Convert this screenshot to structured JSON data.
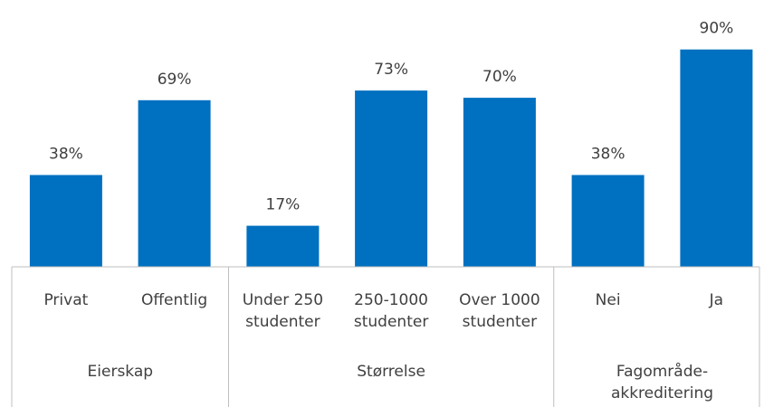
{
  "chart_data": {
    "type": "bar",
    "bar_color": "#0070C0",
    "ylim": [
      0,
      100
    ],
    "grid": false,
    "legend": "none",
    "groups": [
      {
        "name": "Eierskap",
        "categories": [
          {
            "label": [
              "Privat"
            ],
            "value": 38,
            "value_label": "38%"
          },
          {
            "label": [
              "Offentlig"
            ],
            "value": 69,
            "value_label": "69%"
          }
        ]
      },
      {
        "name": "Størrelse",
        "categories": [
          {
            "label": [
              "Under 250",
              "studenter"
            ],
            "value": 17,
            "value_label": "17%"
          },
          {
            "label": [
              "250-1000",
              "studenter"
            ],
            "value": 73,
            "value_label": "73%"
          },
          {
            "label": [
              "Over 1000",
              "studenter"
            ],
            "value": 70,
            "value_label": "70%"
          }
        ]
      },
      {
        "name": "Fagområde-akkreditering",
        "name_lines": [
          "Fagområde-",
          "akkreditering"
        ],
        "categories": [
          {
            "label": [
              "Nei"
            ],
            "value": 38,
            "value_label": "38%"
          },
          {
            "label": [
              "Ja"
            ],
            "value": 90,
            "value_label": "90%"
          }
        ]
      }
    ]
  }
}
